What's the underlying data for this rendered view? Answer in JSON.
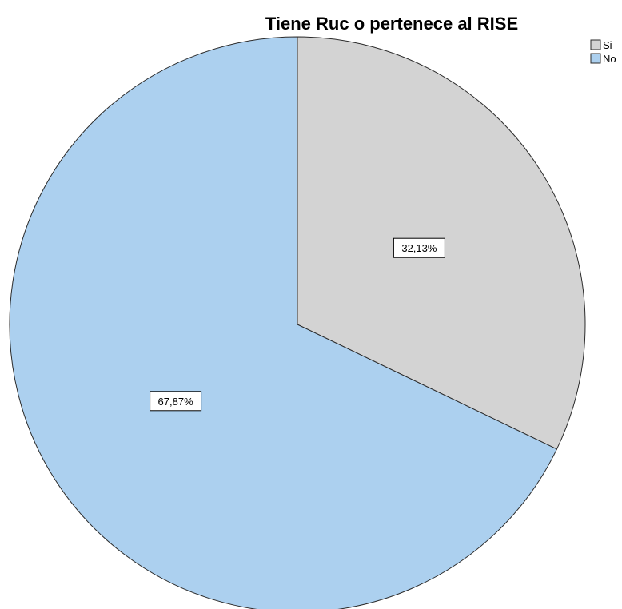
{
  "chart_data": {
    "type": "pie",
    "title": "Tiene Ruc o pertenece al RISE",
    "slices": [
      {
        "label": "Si",
        "value": 32.13,
        "display": "32,13%",
        "color": "#d3d3d3"
      },
      {
        "label": "No",
        "value": 67.87,
        "display": "67,87%",
        "color": "#acd0ef"
      }
    ],
    "legend": {
      "placement": "top-right",
      "items": [
        "Si",
        "No"
      ]
    },
    "start_angle": "12 o'clock",
    "direction": "clockwise",
    "outline_color": "#2b2b2b"
  }
}
